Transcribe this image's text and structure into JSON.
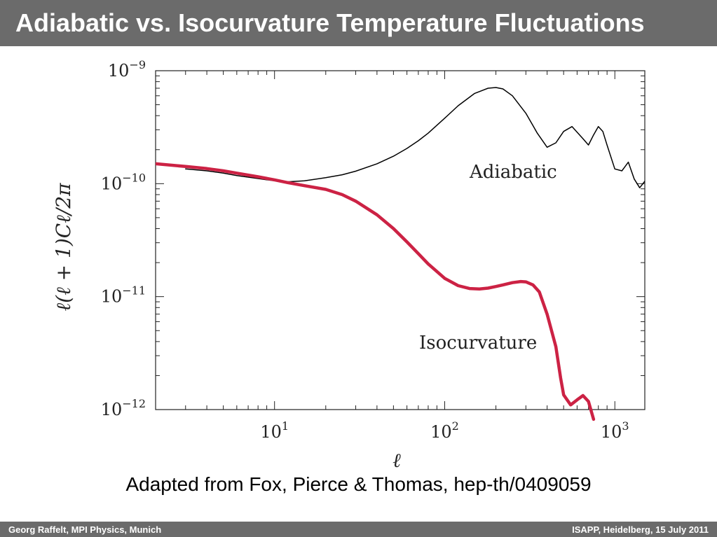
{
  "slide": {
    "title": "Adiabatic vs. Isocurvature Temperature Fluctuations",
    "caption": "Adapted from Fox, Pierce & Thomas, hep-th/0409059",
    "footer_left": "Georg Raffelt, MPI Physics, Munich",
    "footer_right": "ISAPP, Heidelberg, 15 July 2011"
  },
  "chart_data": {
    "type": "line",
    "title": "",
    "xlabel": "ℓ",
    "ylabel": "ℓ(ℓ + 1)Cℓ/2π",
    "xscale": "log",
    "yscale": "log",
    "xlim": [
      2,
      1500
    ],
    "ylim": [
      1e-12,
      1e-09
    ],
    "xticks": [
      {
        "value": 10,
        "base": "10",
        "exp": "1"
      },
      {
        "value": 100,
        "base": "10",
        "exp": "2"
      },
      {
        "value": 1000,
        "base": "10",
        "exp": "3"
      }
    ],
    "yticks": [
      {
        "value": 1e-09,
        "base": "10",
        "exp": "−9"
      },
      {
        "value": 1e-10,
        "base": "10",
        "exp": "−10"
      },
      {
        "value": 1e-11,
        "base": "10",
        "exp": "−11"
      },
      {
        "value": 1e-12,
        "base": "10",
        "exp": "−12"
      }
    ],
    "grid": false,
    "series": [
      {
        "name": "Adiabatic",
        "color": "#000000",
        "x": [
          3,
          4,
          5,
          6,
          8,
          10,
          12,
          15,
          20,
          25,
          30,
          40,
          50,
          60,
          70,
          80,
          100,
          120,
          150,
          180,
          200,
          220,
          250,
          300,
          350,
          400,
          450,
          500,
          560,
          650,
          700,
          750,
          800,
          850,
          900,
          1000,
          1100,
          1200,
          1300,
          1400,
          1500
        ],
        "y": [
          1.35e-10,
          1.3e-10,
          1.24e-10,
          1.18e-10,
          1.11e-10,
          1.06e-10,
          1.04e-10,
          1.06e-10,
          1.13e-10,
          1.2e-10,
          1.29e-10,
          1.5e-10,
          1.75e-10,
          2.05e-10,
          2.4e-10,
          2.8e-10,
          3.8e-10,
          4.9e-10,
          6.3e-10,
          7e-10,
          7.1e-10,
          6.9e-10,
          6e-10,
          4.2e-10,
          2.8e-10,
          2.1e-10,
          2.3e-10,
          2.9e-10,
          3.2e-10,
          2.5e-10,
          2.2e-10,
          2.7e-10,
          3.2e-10,
          2.9e-10,
          2.2e-10,
          1.35e-10,
          1.3e-10,
          1.55e-10,
          1.1e-10,
          9.2e-11,
          1.05e-10
        ]
      },
      {
        "name": "Isocurvature",
        "color": "#cc2244",
        "x": [
          2,
          3,
          4,
          5,
          6,
          8,
          10,
          12,
          15,
          20,
          25,
          30,
          40,
          50,
          60,
          70,
          80,
          100,
          120,
          140,
          160,
          180,
          200,
          220,
          250,
          280,
          300,
          330,
          360,
          400,
          450,
          480,
          500,
          550,
          600,
          650,
          700,
          750
        ],
        "y": [
          1.5e-10,
          1.42e-10,
          1.36e-10,
          1.3e-10,
          1.24e-10,
          1.15e-10,
          1.08e-10,
          1.02e-10,
          9.6e-11,
          8.9e-11,
          8e-11,
          7e-11,
          5.3e-11,
          4e-11,
          3.05e-11,
          2.4e-11,
          1.95e-11,
          1.45e-11,
          1.25e-11,
          1.18e-11,
          1.17e-11,
          1.19e-11,
          1.23e-11,
          1.27e-11,
          1.33e-11,
          1.36e-11,
          1.35e-11,
          1.27e-11,
          1.1e-11,
          7e-12,
          3.6e-12,
          1.9e-12,
          1.35e-12,
          1.1e-12,
          1.22e-12,
          1.33e-12,
          1.18e-12,
          8.2e-13
        ]
      }
    ],
    "annotations": [
      "Adiabatic",
      "Isocurvature"
    ]
  }
}
